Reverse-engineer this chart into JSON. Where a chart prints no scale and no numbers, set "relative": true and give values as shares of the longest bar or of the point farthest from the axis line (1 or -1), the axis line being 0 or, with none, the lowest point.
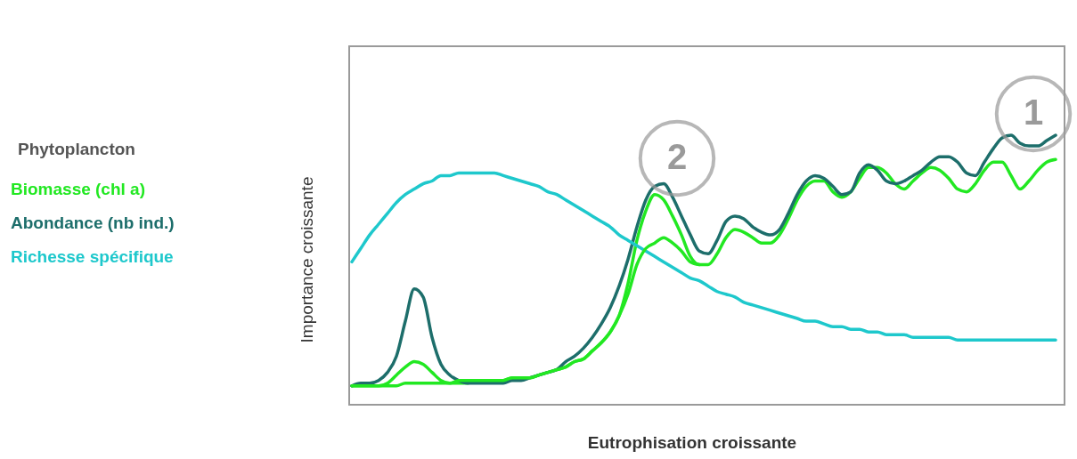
{
  "chart_data": {
    "type": "line",
    "relative": true,
    "xlabel": "Eutrophisation croissante",
    "ylabel": "Importance croissante",
    "legend_title": "Phytoplancton",
    "legend": "left",
    "line_style": "solid",
    "marker": "none",
    "categories": [
      null,
      null,
      null,
      null,
      null,
      null,
      null,
      null,
      null,
      null,
      null,
      null,
      null,
      null,
      null,
      null,
      null,
      null,
      null,
      null,
      null,
      null,
      null,
      null,
      null,
      null,
      null,
      null,
      null,
      null,
      null,
      null,
      null,
      null,
      null,
      null,
      null,
      null,
      null,
      null,
      null,
      null,
      null,
      null,
      null,
      null,
      null,
      null,
      null,
      null,
      null,
      null,
      null,
      null,
      null,
      null,
      null,
      null,
      null,
      null,
      null,
      null,
      null,
      null,
      null,
      null,
      null,
      null,
      null,
      null,
      null,
      null,
      null,
      null,
      null,
      null,
      null,
      null,
      null,
      null
    ],
    "series": [
      {
        "name": "Biomasse (chl a)",
        "color": "#22e822",
        "values": [
          0.07,
          0.07,
          0.07,
          0.07,
          0.08,
          0.11,
          0.14,
          0.16,
          0.15,
          0.12,
          0.09,
          0.08,
          0.08,
          0.08,
          0.09,
          0.09,
          0.09,
          0.09,
          0.1,
          0.1,
          0.1,
          0.11,
          0.12,
          0.13,
          0.14,
          0.16,
          0.17,
          0.2,
          0.23,
          0.27,
          0.33,
          0.45,
          0.61,
          0.72,
          0.78,
          0.76,
          0.7,
          0.63,
          0.55,
          0.52,
          0.52,
          0.56,
          0.62,
          0.65,
          0.64,
          0.62,
          0.6,
          0.6,
          0.63,
          0.69,
          0.76,
          0.81,
          0.83,
          0.83,
          0.79,
          0.77,
          0.79,
          0.84,
          0.88,
          0.88,
          0.86,
          0.82,
          0.8,
          0.83,
          0.86,
          0.88,
          0.87,
          0.84,
          0.8,
          0.79,
          0.82,
          0.87,
          0.9,
          0.9,
          0.85,
          0.8,
          0.83,
          0.87,
          0.9,
          0.91
        ]
      },
      {
        "name": "Abondance (nb ind.)",
        "color": "#1d6e6b",
        "values": [
          0.07,
          0.08,
          0.08,
          0.09,
          0.12,
          0.18,
          0.31,
          0.43,
          0.4,
          0.25,
          0.15,
          0.11,
          0.09,
          0.08,
          0.08,
          0.08,
          0.08,
          0.08,
          0.09,
          0.09,
          0.1,
          0.11,
          0.12,
          0.13,
          0.16,
          0.18,
          0.21,
          0.25,
          0.3,
          0.36,
          0.44,
          0.54,
          0.66,
          0.76,
          0.81,
          0.82,
          0.77,
          0.7,
          0.63,
          0.57,
          0.56,
          0.61,
          0.68,
          0.7,
          0.69,
          0.66,
          0.64,
          0.63,
          0.65,
          0.71,
          0.78,
          0.83,
          0.85,
          0.84,
          0.81,
          0.78,
          0.79,
          0.86,
          0.89,
          0.87,
          0.83,
          0.82,
          0.83,
          0.85,
          0.87,
          0.9,
          0.92,
          0.92,
          0.9,
          0.86,
          0.85,
          0.9,
          0.95,
          0.99,
          1.0,
          0.97,
          0.96,
          0.96,
          0.98,
          1.0
        ]
      },
      {
        "name": "Richesse spécifique",
        "color": "#1ec8cc",
        "values": [
          0.53,
          0.58,
          0.63,
          0.67,
          0.71,
          0.75,
          0.78,
          0.8,
          0.82,
          0.83,
          0.85,
          0.85,
          0.86,
          0.86,
          0.86,
          0.86,
          0.86,
          0.85,
          0.84,
          0.83,
          0.82,
          0.81,
          0.79,
          0.78,
          0.76,
          0.74,
          0.72,
          0.7,
          0.68,
          0.66,
          0.63,
          0.61,
          0.59,
          0.57,
          0.55,
          0.53,
          0.51,
          0.49,
          0.47,
          0.46,
          0.44,
          0.42,
          0.41,
          0.4,
          0.38,
          0.37,
          0.36,
          0.35,
          0.34,
          0.33,
          0.32,
          0.31,
          0.31,
          0.3,
          0.29,
          0.29,
          0.28,
          0.28,
          0.27,
          0.27,
          0.26,
          0.26,
          0.26,
          0.25,
          0.25,
          0.25,
          0.25,
          0.25,
          0.24,
          0.24,
          0.24,
          0.24,
          0.24,
          0.24,
          0.24,
          0.24,
          0.24,
          0.24,
          0.24,
          0.24
        ]
      },
      {
        "color": "#22e822",
        "values": [
          0.07,
          0.07,
          0.07,
          0.07,
          0.07,
          0.07,
          0.08,
          0.08,
          0.08,
          0.08,
          0.08,
          0.08,
          0.09,
          0.09,
          0.09,
          0.09,
          0.09,
          0.09,
          0.1,
          0.1,
          0.1,
          0.11,
          0.12,
          0.13,
          0.14,
          0.16,
          0.17,
          0.2,
          0.23,
          0.27,
          0.33,
          0.41,
          0.52,
          0.58,
          0.6,
          0.62,
          0.6,
          0.57,
          0.53,
          0.52,
          null,
          null,
          null,
          null,
          null,
          null,
          null,
          null,
          null,
          null,
          null,
          null,
          null,
          null,
          null,
          null,
          null,
          null,
          null,
          null,
          null,
          null,
          null,
          null,
          null,
          null,
          null,
          null,
          null,
          null,
          null,
          null,
          null,
          null,
          null,
          null,
          null,
          null,
          null,
          null
        ]
      }
    ],
    "annotations": [
      "2",
      "1"
    ]
  }
}
